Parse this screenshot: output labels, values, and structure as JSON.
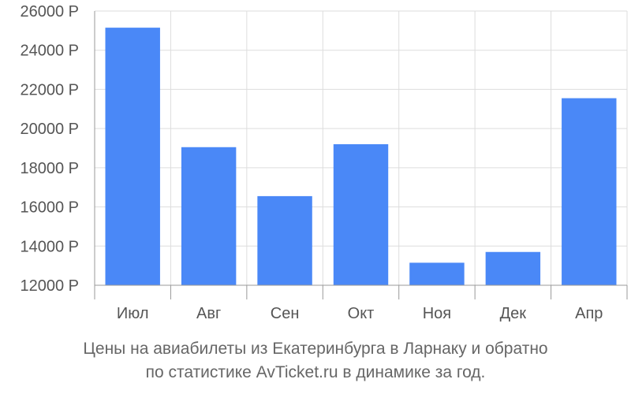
{
  "chart_data": {
    "type": "bar",
    "categories": [
      "Июл",
      "Авг",
      "Сен",
      "Окт",
      "Ноя",
      "Дек",
      "Апр"
    ],
    "values": [
      25150,
      19050,
      16550,
      19200,
      13150,
      13700,
      21550
    ],
    "yticks": [
      "12000 Р",
      "14000 Р",
      "16000 Р",
      "18000 Р",
      "20000 Р",
      "22000 Р",
      "24000 Р",
      "26000 Р"
    ],
    "ylim": [
      12000,
      26000
    ],
    "grid": true,
    "bar_color": "#4a88f7"
  },
  "caption": {
    "line1": "Цены на авиабилеты из Екатеринбурга в Ларнаку и обратно",
    "line2": "по статистике AvTicket.ru в динамике за год."
  }
}
